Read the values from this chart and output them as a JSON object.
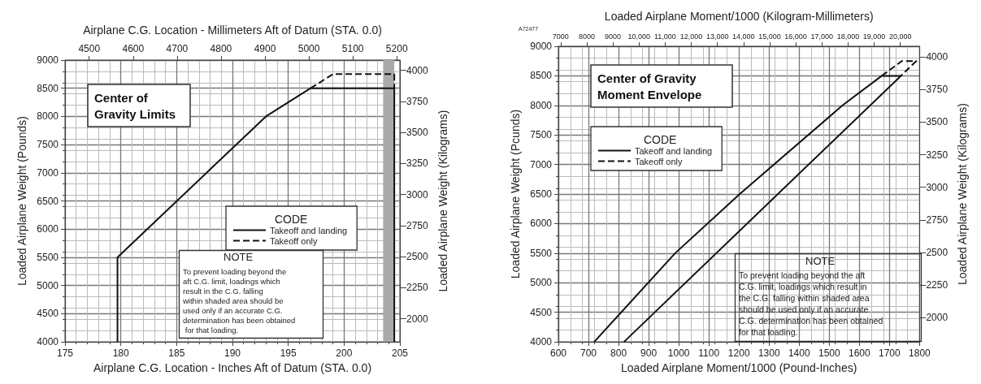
{
  "chart_data": [
    {
      "type": "line",
      "title": "Center of Gravity Limits",
      "xlabel": "Airplane C.G. Location - Inches Aft of Datum (STA. 0.0)",
      "x2label": "Airplane C.G. Location - Millimeters Aft of Datum (STA. 0.0)",
      "ylabel": "Loaded Airplane Weight (Pounds)",
      "y2label": "Loaded Airplane Weight (Kilograms)",
      "legend_title": "CODE",
      "xlim": [
        175,
        205
      ],
      "xticks": [
        175,
        180,
        185,
        190,
        195,
        200,
        205
      ],
      "x2lim": [
        4445,
        5207
      ],
      "x2ticks": [
        4500,
        4600,
        4700,
        4800,
        4900,
        5000,
        5100,
        5200
      ],
      "ylim": [
        4000,
        9000
      ],
      "yticks": [
        4000,
        4500,
        5000,
        5500,
        6000,
        6500,
        7000,
        7500,
        8000,
        8500,
        9000
      ],
      "y2lim": [
        1814,
        4082
      ],
      "y2ticks": [
        2000,
        2250,
        2500,
        2750,
        3000,
        3250,
        3500,
        3750,
        4000
      ],
      "series": [
        {
          "name": "Takeoff and landing",
          "color": "#111111",
          "line_style": "solid",
          "x": [
            179.7,
            179.7,
            193,
            197,
            204.5,
            204.5
          ],
          "values": [
            4000,
            5500,
            8000,
            8500,
            8500,
            4000
          ]
        },
        {
          "name": "Takeoff only",
          "color": "#111111",
          "line_style": "dashed",
          "x": [
            197,
            199,
            204.5,
            204.5
          ],
          "values": [
            8500,
            8750,
            8750,
            8500
          ]
        }
      ],
      "bands": [
        {
          "axis": "x",
          "from": 203.5,
          "to": 204.5,
          "color": "#aaaaaa"
        }
      ],
      "annotations": [
        "NOTE",
        "To prevent loading beyond the aft C.G. limit, loadings which result in the C.G. falling within shaded area should be used only if an accurate C.G. determination has been obtained for that loading."
      ],
      "grid": true,
      "legend": "right",
      "marker": "none"
    },
    {
      "type": "line",
      "title": "Center of Gravity Moment Envelope",
      "xlabel": "Loaded Airplane Moment/1000 (Pound-Inches)",
      "x2label": "Loaded Airplane Moment/1000 (Kilogram-Millimeters)",
      "ylabel": "Loaded Airplane Weight (Pcunds)",
      "y2label": "Loaded Airplane Weight (Kilograms)",
      "legend_title": "CODE",
      "xlim": [
        600,
        1800
      ],
      "xticks": [
        600,
        700,
        800,
        900,
        1000,
        1100,
        1200,
        1300,
        1400,
        1500,
        1600,
        1700,
        1800
      ],
      "x2lim": [
        6913,
        20738
      ],
      "x2ticks": [
        7000,
        8000,
        9000,
        {
          "value": 10000,
          "label": "10,000"
        },
        {
          "value": 11000,
          "label": "11,000"
        },
        {
          "value": 12000,
          "label": "12,000"
        },
        {
          "value": 13000,
          "label": "13,000"
        },
        {
          "value": 14000,
          "label": "14,000"
        },
        {
          "value": 15000,
          "label": "15,000"
        },
        {
          "value": 16000,
          "label": "16,000"
        },
        {
          "value": 17000,
          "label": "17,000"
        },
        {
          "value": 18000,
          "label": "18,000"
        },
        {
          "value": 19000,
          "label": "19,000"
        },
        {
          "value": 20000,
          "label": "20,000"
        }
      ],
      "ylim": [
        4000,
        9000
      ],
      "yticks": [
        4000,
        4500,
        5000,
        5500,
        6000,
        6500,
        7000,
        7500,
        8000,
        8500,
        9000
      ],
      "y2lim": [
        1814,
        4082
      ],
      "y2ticks": [
        2000,
        2250,
        2500,
        2750,
        3000,
        3250,
        3500,
        3750,
        4000
      ],
      "series": [
        {
          "name": "Takeoff and landing",
          "color": "#111111",
          "line_style": "solid",
          "x": [
            719,
            988,
            1202.5,
            1544,
            1674.5,
            1738,
            818
          ],
          "values": [
            4000,
            5500,
            6500,
            8000,
            8500,
            8500,
            4000
          ]
        },
        {
          "name": "Takeoff only",
          "color": "#111111",
          "line_style": "dashed",
          "x": [
            1674.5,
            1741,
            1789,
            1738
          ],
          "values": [
            8500,
            8750,
            8750,
            8500
          ]
        }
      ],
      "annotations": [
        "A72477",
        "NOTE",
        "To prevent loading beyond the aft C.G. limit, loadings which result in the C.G. falling within shaded area should be used only if an accurate C.G. determination has been obtained for that loading."
      ],
      "grid": true,
      "legend": "left",
      "marker": "none"
    }
  ]
}
